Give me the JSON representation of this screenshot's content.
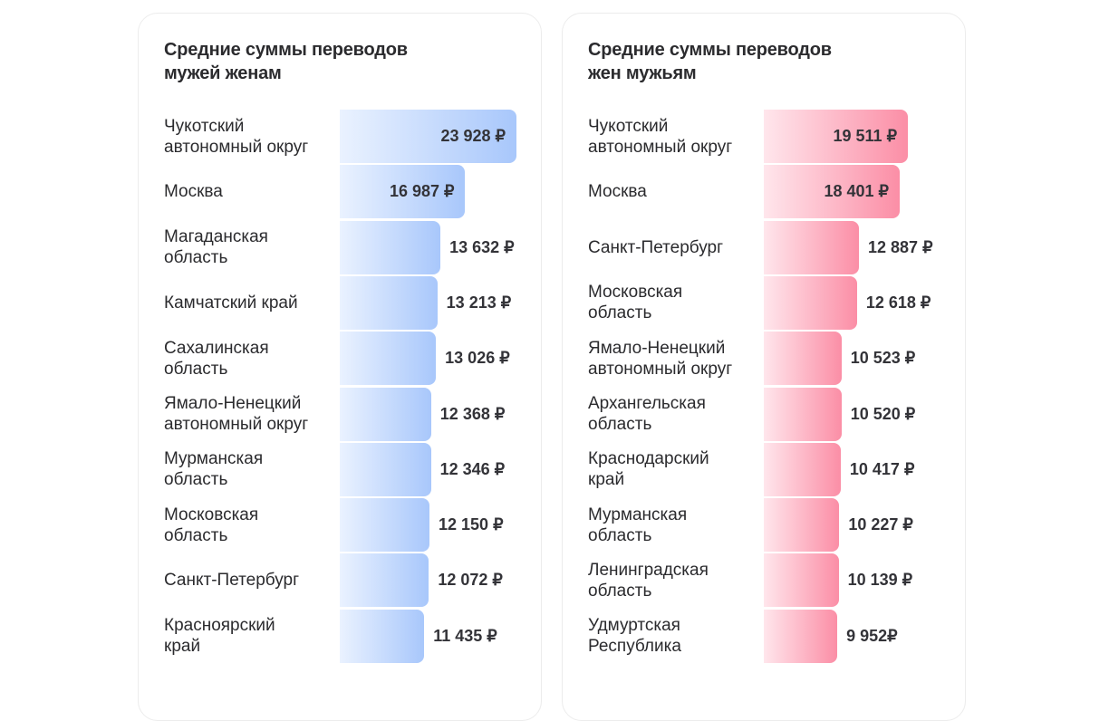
{
  "chart_data": [
    {
      "type": "bar",
      "orientation": "horizontal",
      "title": [
        "Средние суммы переводов",
        "мужей женам"
      ],
      "color": "#a8c7fb",
      "currency": "₽",
      "categories": [
        [
          "Чукотский",
          "автономный округ"
        ],
        [
          "Москва"
        ],
        [
          "Магаданская",
          "область"
        ],
        [
          "Камчатский край"
        ],
        [
          "Сахалинская",
          "область"
        ],
        [
          "Ямало-Ненецкий",
          "автономный округ"
        ],
        [
          "Мурманская",
          "область"
        ],
        [
          "Московская",
          "область"
        ],
        [
          "Санкт-Петербург"
        ],
        [
          "Красноярский",
          "край"
        ]
      ],
      "values": [
        23928,
        16987,
        13632,
        13213,
        13026,
        12368,
        12346,
        12150,
        12072,
        11435
      ],
      "labels": [
        "23 928 ₽",
        "16 987 ₽",
        "13 632 ₽",
        "13 213 ₽",
        "13 026 ₽",
        "12 368 ₽",
        "12 346 ₽",
        "12 150 ₽",
        "12 072 ₽",
        "11 435 ₽"
      ]
    },
    {
      "type": "bar",
      "orientation": "horizontal",
      "title": [
        "Средние суммы переводов",
        "жен мужьям"
      ],
      "color": "#fb8ea6",
      "currency": "₽",
      "categories": [
        [
          "Чукотский",
          "автономный округ"
        ],
        [
          "Москва"
        ],
        [
          "Санкт-Петербург"
        ],
        [
          "Московская",
          "область"
        ],
        [
          "Ямало-Ненецкий",
          "автономный округ"
        ],
        [
          "Архангельская",
          "область"
        ],
        [
          "Краснодарский",
          "край"
        ],
        [
          "Мурманская",
          "область"
        ],
        [
          "Ленинградская",
          "область"
        ],
        [
          "Удмуртская",
          "Республика"
        ]
      ],
      "values": [
        19511,
        18401,
        12887,
        12618,
        10523,
        10520,
        10417,
        10227,
        10139,
        9952
      ],
      "labels": [
        "19 511 ₽",
        "18 401 ₽",
        "12 887 ₽",
        "12 618 ₽",
        "10 523 ₽",
        "10 520 ₽",
        "10 417 ₽",
        "10 227 ₽",
        "10 139 ₽",
        "9 952₽"
      ]
    }
  ]
}
